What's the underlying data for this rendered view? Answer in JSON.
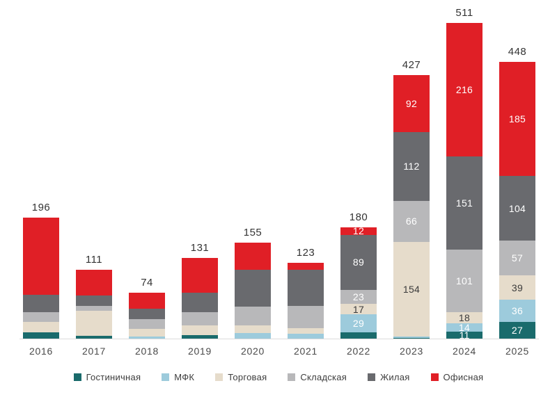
{
  "chart_data": {
    "type": "bar",
    "stacked": true,
    "title": "",
    "xlabel": "",
    "ylabel": "",
    "grid": false,
    "legend_position": "bottom",
    "categories": [
      "2016",
      "2017",
      "2018",
      "2019",
      "2020",
      "2021",
      "2022",
      "2023",
      "2024",
      "2025"
    ],
    "totals": [
      "196",
      "111",
      "74",
      "131",
      "155",
      "123",
      "180",
      "427",
      "511",
      "448"
    ],
    "series": [
      {
        "name": "Гостиничная",
        "color": "#1a6b6c",
        "label_color": "#ffffff",
        "values": [
          10,
          5,
          0,
          6,
          0,
          0,
          10,
          1,
          11,
          27
        ],
        "labels": [
          "",
          "",
          "",
          "",
          "",
          "",
          "",
          "",
          "11",
          "27"
        ]
      },
      {
        "name": "МФК",
        "color": "#9dcbdc",
        "label_color": "#ffffff",
        "values": [
          0,
          0,
          3,
          0,
          9,
          8,
          29,
          2,
          14,
          36
        ],
        "labels": [
          "",
          "",
          "",
          "",
          "",
          "",
          "29",
          "",
          "14",
          "36"
        ]
      },
      {
        "name": "Торговая",
        "color": "#e6dccb",
        "label_color": "#3b3b3b",
        "values": [
          17,
          40,
          13,
          15,
          12,
          9,
          17,
          154,
          18,
          39
        ],
        "labels": [
          "",
          "",
          "",
          "",
          "",
          "",
          "17",
          "154",
          "18",
          "39"
        ]
      },
      {
        "name": "Складская",
        "color": "#b8b8ba",
        "label_color": "#ffffff",
        "values": [
          16,
          8,
          16,
          22,
          31,
          36,
          23,
          66,
          101,
          57
        ],
        "labels": [
          "",
          "",
          "",
          "",
          "",
          "",
          "23",
          "66",
          "101",
          "57"
        ]
      },
      {
        "name": "Жилая",
        "color": "#696a6e",
        "label_color": "#ffffff",
        "values": [
          28,
          17,
          16,
          31,
          60,
          58,
          89,
          112,
          151,
          104
        ],
        "labels": [
          "",
          "",
          "",
          "",
          "",
          "",
          "89",
          "112",
          "151",
          "104"
        ]
      },
      {
        "name": "Офисная",
        "color": "#e01f26",
        "label_color": "#ffffff",
        "values": [
          125,
          41,
          26,
          57,
          43,
          12,
          12,
          92,
          216,
          185
        ],
        "labels": [
          "",
          "",
          "",
          "",
          "",
          "",
          "12",
          "92",
          "216",
          "185"
        ]
      }
    ]
  }
}
